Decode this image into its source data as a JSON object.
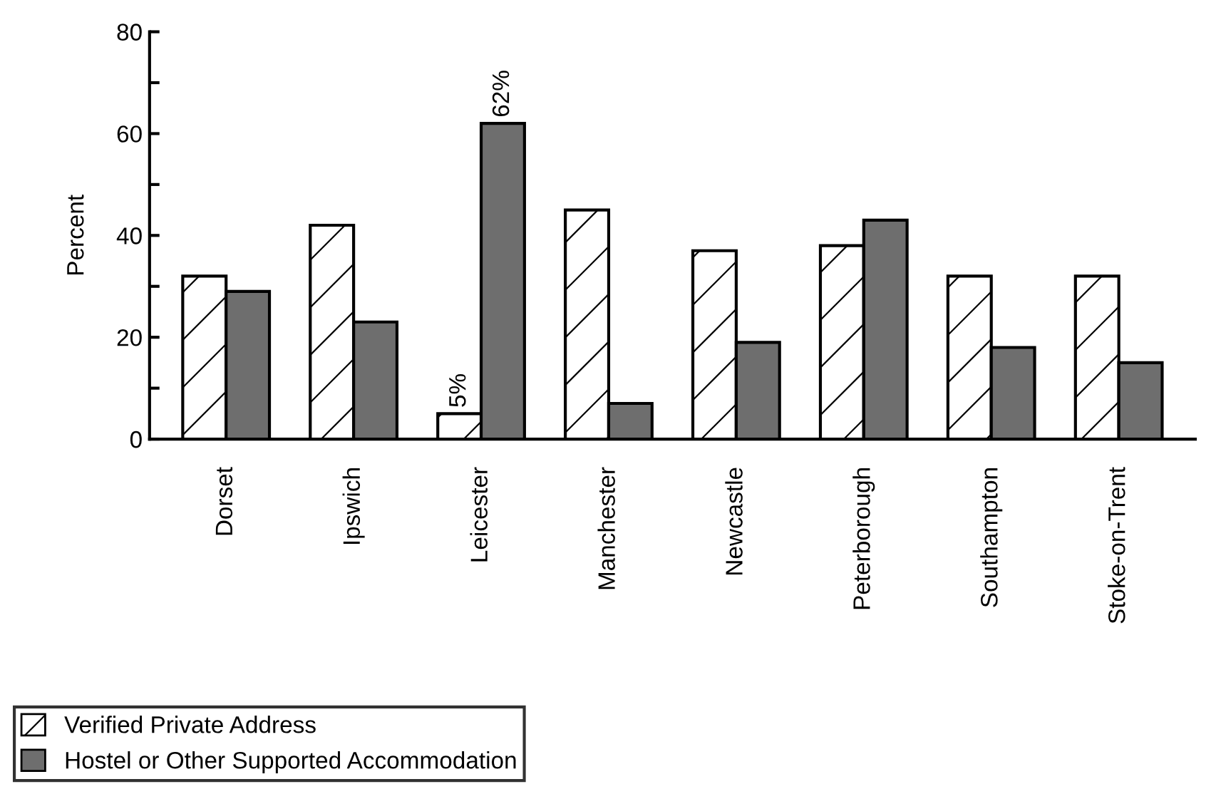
{
  "chart_data": {
    "type": "bar",
    "ylabel": "Percent",
    "categories": [
      "Dorset",
      "Ipswich",
      "Leicester",
      "Manchester",
      "Newcastle",
      "Peterborough",
      "Southampton",
      "Stoke-on-Trent"
    ],
    "series": [
      {
        "name": "Verified Private Address",
        "color": "#ffffff",
        "values": [
          32,
          42,
          5,
          45,
          37,
          38,
          32,
          32
        ],
        "value_labels": [
          null,
          null,
          "5%",
          null,
          null,
          null,
          null,
          null
        ]
      },
      {
        "name": "Hostel or Other Supported Accommodation",
        "color": "#6e6e6e",
        "values": [
          29,
          23,
          62,
          7,
          19,
          43,
          18,
          15
        ],
        "value_labels": [
          null,
          null,
          "62%",
          null,
          null,
          null,
          null,
          null
        ]
      }
    ],
    "ylim": [
      0,
      80
    ],
    "yticks": [
      0,
      {
        "value": 10,
        "label": null
      },
      20,
      {
        "value": 30,
        "label": null
      },
      40,
      {
        "value": 50,
        "label": null
      },
      60,
      {
        "value": 70,
        "label": null
      },
      80
    ],
    "grid": false,
    "legend": "bottom left"
  }
}
